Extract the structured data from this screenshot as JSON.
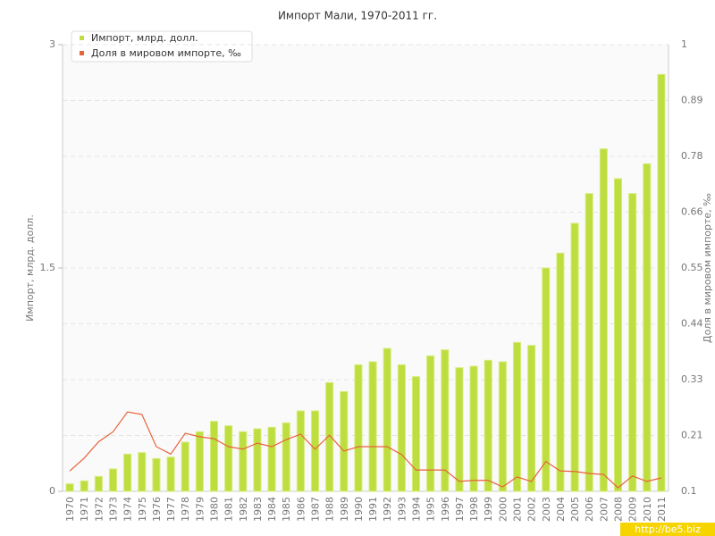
{
  "chart_data": {
    "type": "bar",
    "title": "Импорт Мали, 1970-2011 гг.",
    "y_label": "Импорт, млрд. долл.",
    "y2_label": "Доля в мировом импорте, ‰",
    "watermark": "http://be5.biz",
    "categories": [
      "1970",
      "1971",
      "1972",
      "1973",
      "1974",
      "1975",
      "1976",
      "1977",
      "1978",
      "1979",
      "1980",
      "1981",
      "1982",
      "1983",
      "1984",
      "1985",
      "1986",
      "1987",
      "1988",
      "1989",
      "1990",
      "1991",
      "1992",
      "1993",
      "1994",
      "1995",
      "1996",
      "1997",
      "1998",
      "1999",
      "2000",
      "2001",
      "2002",
      "2003",
      "2004",
      "2005",
      "2006",
      "2007",
      "2008",
      "2009",
      "2010",
      "2011"
    ],
    "series": [
      {
        "name": "Импорт, млрд. долл.",
        "color": "#bedd3f",
        "type": "bar",
        "values": [
          0.05,
          0.07,
          0.1,
          0.15,
          0.25,
          0.26,
          0.22,
          0.23,
          0.33,
          0.4,
          0.47,
          0.44,
          0.4,
          0.42,
          0.43,
          0.46,
          0.54,
          0.54,
          0.73,
          0.67,
          0.85,
          0.87,
          0.96,
          0.85,
          0.77,
          0.91,
          0.95,
          0.83,
          0.84,
          0.88,
          0.87,
          1.0,
          0.98,
          1.5,
          1.6,
          1.8,
          2.0,
          2.3,
          2.1,
          2.0,
          2.2,
          2.8
        ]
      },
      {
        "name": "Доля в мировом импорте, ‰",
        "color": "#e8623a",
        "type": "line",
        "axis": "y2",
        "values": [
          0.141,
          0.167,
          0.2,
          0.22,
          0.26,
          0.255,
          0.19,
          0.175,
          0.217,
          0.21,
          0.206,
          0.19,
          0.185,
          0.197,
          0.19,
          0.204,
          0.215,
          0.185,
          0.213,
          0.181,
          0.19,
          0.19,
          0.19,
          0.174,
          0.143,
          0.143,
          0.143,
          0.12,
          0.122,
          0.122,
          0.109,
          0.129,
          0.12,
          0.16,
          0.141,
          0.14,
          0.136,
          0.134,
          0.107,
          0.131,
          0.12,
          0.127
        ]
      }
    ],
    "ylim": [
      0,
      3
    ],
    "yticks": [
      0,
      1.5,
      3
    ],
    "y2lim": [
      0.1,
      1
    ],
    "y2ticks": [
      {
        "value": 0.1,
        "label": "0.1"
      },
      {
        "value": 0.2125,
        "label": "0.21"
      },
      {
        "value": 0.325,
        "label": "0.33"
      },
      {
        "value": 0.4375,
        "label": "0.44"
      },
      {
        "value": 0.55,
        "label": "0.55"
      },
      {
        "value": 0.6625,
        "label": "0.66"
      },
      {
        "value": 0.775,
        "label": "0.78"
      },
      {
        "value": 0.8875,
        "label": "0.89"
      },
      {
        "value": 1,
        "label": "1"
      }
    ],
    "grid": true,
    "legend": "top-left"
  }
}
